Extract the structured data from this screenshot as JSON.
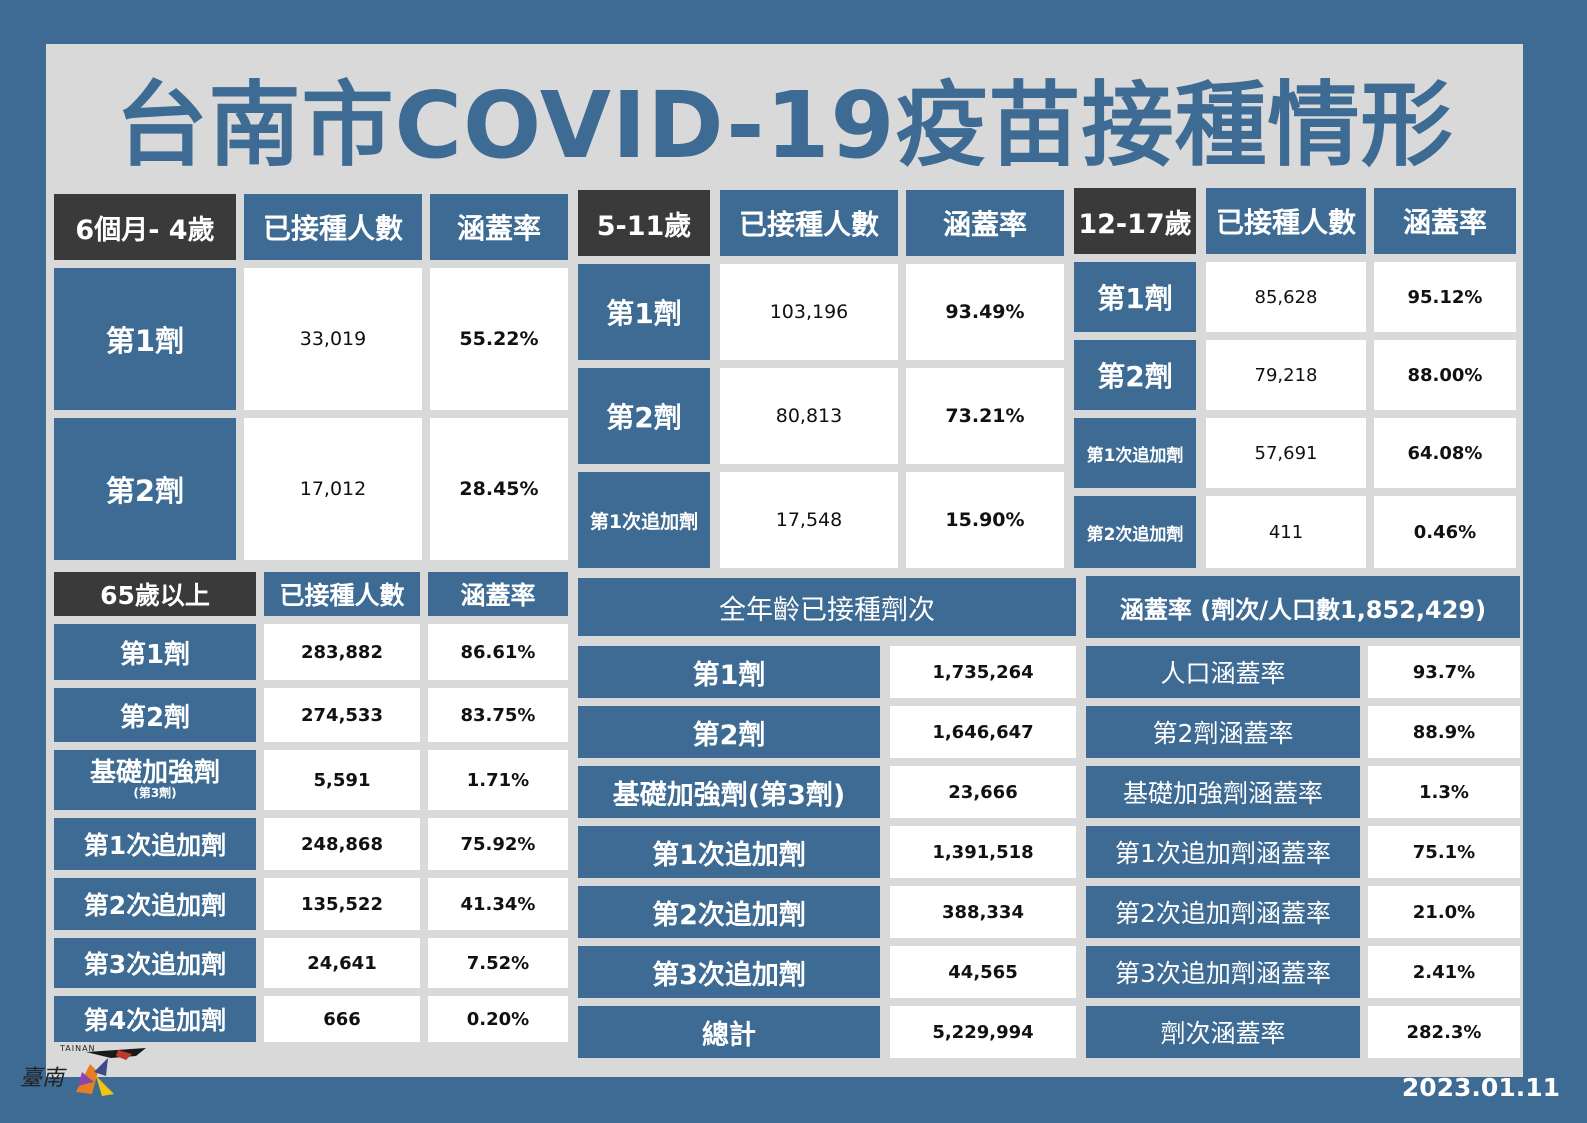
{
  "title": "台南市COVID-19疫苗接種情形",
  "date": "2023.01.11",
  "logo": {
    "text": "臺南",
    "small": "TAINAN"
  },
  "headers": {
    "count": "已接種人數",
    "rate": "涵蓋率"
  },
  "t1": {
    "age": "6個月- 4歲",
    "rows": [
      {
        "label": "第1劑",
        "count": "33,019",
        "rate": "55.22%"
      },
      {
        "label": "第2劑",
        "count": "17,012",
        "rate": "28.45%"
      }
    ]
  },
  "t2": {
    "age": "5-11歲",
    "rows": [
      {
        "label": "第1劑",
        "count": "103,196",
        "rate": "93.49%"
      },
      {
        "label": "第2劑",
        "count": "80,813",
        "rate": "73.21%"
      },
      {
        "label": "第1次追加劑",
        "count": "17,548",
        "rate": "15.90%"
      }
    ]
  },
  "t3": {
    "age": "12-17歲",
    "rows": [
      {
        "label": "第1劑",
        "count": "85,628",
        "rate": "95.12%"
      },
      {
        "label": "第2劑",
        "count": "79,218",
        "rate": "88.00%"
      },
      {
        "label": "第1次追加劑",
        "count": "57,691",
        "rate": "64.08%"
      },
      {
        "label": "第2次追加劑",
        "count": "411",
        "rate": "0.46%"
      }
    ]
  },
  "t4": {
    "age": "65歲以上",
    "rows": [
      {
        "label": "第1劑",
        "count": "283,882",
        "rate": "86.61%"
      },
      {
        "label": "第2劑",
        "count": "274,533",
        "rate": "83.75%"
      },
      {
        "label": "基礎加強劑",
        "sub": "(第3劑)",
        "count": "5,591",
        "rate": "1.71%"
      },
      {
        "label": "第1次追加劑",
        "count": "248,868",
        "rate": "75.92%"
      },
      {
        "label": "第2次追加劑",
        "count": "135,522",
        "rate": "41.34%"
      },
      {
        "label": "第3次追加劑",
        "count": "24,641",
        "rate": "7.52%"
      },
      {
        "label": "第4次追加劑",
        "count": "666",
        "rate": "0.20%"
      }
    ]
  },
  "t5": {
    "header": "全年齡已接種劑次",
    "rows": [
      {
        "label": "第1劑",
        "value": "1,735,264"
      },
      {
        "label": "第2劑",
        "value": "1,646,647"
      },
      {
        "label": "基礎加強劑(第3劑)",
        "value": "23,666"
      },
      {
        "label": "第1次追加劑",
        "value": "1,391,518"
      },
      {
        "label": "第2次追加劑",
        "value": "388,334"
      },
      {
        "label": "第3次追加劑",
        "value": "44,565"
      },
      {
        "label": "總計",
        "value": "5,229,994"
      }
    ]
  },
  "t6": {
    "header": "涵蓋率 (劑次/人口數1,852,429)",
    "rows": [
      {
        "label": "人口涵蓋率",
        "value": "93.7%"
      },
      {
        "label": "第2劑涵蓋率",
        "value": "88.9%"
      },
      {
        "label": "基礎加強劑涵蓋率",
        "value": "1.3%"
      },
      {
        "label": "第1次追加劑涵蓋率",
        "value": "75.1%"
      },
      {
        "label": "第2次追加劑涵蓋率",
        "value": "21.0%"
      },
      {
        "label": "第3次追加劑涵蓋率",
        "value": "2.41%"
      },
      {
        "label": "劑次涵蓋率",
        "value": "282.3%"
      }
    ]
  }
}
